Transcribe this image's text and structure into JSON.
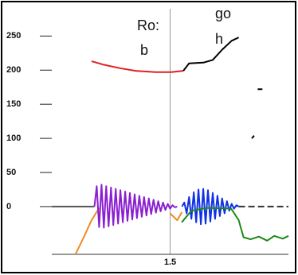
{
  "chart_data": {
    "type": "line",
    "annotations": [
      "Ro:",
      "b",
      "go",
      "h"
    ],
    "xlim": [
      1.0,
      2.0
    ],
    "xticks": [
      1.5
    ],
    "ylim": [
      -70,
      290
    ],
    "yticks": [
      250,
      200,
      150,
      100,
      50,
      0
    ],
    "series": [
      {
        "color": "#555555",
        "dashed": false,
        "x": [
          1.0,
          1.18
        ],
        "values": [
          0,
          0
        ]
      },
      {
        "color": "#333333",
        "dashed": true,
        "x": [
          1.79,
          2.0
        ],
        "values": [
          0,
          0
        ]
      },
      {
        "color": "#e02020",
        "dashed": false,
        "x": [
          1.168,
          1.219,
          1.286,
          1.354,
          1.438,
          1.505,
          1.556
        ],
        "values": [
          213,
          208,
          203,
          199,
          197,
          197,
          199
        ]
      },
      {
        "color": "#000000",
        "dashed": false,
        "x": [
          1.556,
          1.58,
          1.64,
          1.68,
          1.72,
          1.76,
          1.79,
          null,
          1.87,
          1.89,
          null,
          1.845,
          1.855
        ],
        "values": [
          199,
          210,
          211,
          215,
          230,
          243,
          248,
          null,
          172,
          172,
          null,
          100,
          104
        ]
      },
      {
        "color": "#f08a20",
        "dashed": false,
        "x": [
          1.1,
          1.135,
          1.168,
          1.2,
          null,
          1.5,
          1.53,
          1.55
        ],
        "values": [
          -70,
          -45,
          -20,
          -2,
          null,
          -10,
          -20,
          -8
        ]
      },
      {
        "color": "#8a1fd0",
        "dashed": false,
        "x": [
          1.18,
          1.19,
          1.2,
          1.21,
          1.22,
          1.23,
          1.24,
          1.25,
          1.26,
          1.27,
          1.28,
          1.29,
          1.3,
          1.31,
          1.32,
          1.33,
          1.34,
          1.35,
          1.36,
          1.37,
          1.38,
          1.39,
          1.4,
          1.41,
          1.42,
          1.43,
          1.44,
          1.45,
          1.46,
          1.47,
          1.48,
          1.49,
          1.5,
          1.51,
          1.52,
          1.53
        ],
        "values": [
          0,
          30,
          -30,
          32,
          -31,
          30,
          -29,
          28,
          -27,
          26,
          -25,
          24,
          -23,
          22,
          -21,
          20,
          -19,
          18,
          -17,
          16,
          -15,
          14,
          -13,
          12,
          -11,
          10,
          -9,
          8,
          -7,
          6,
          -5,
          4,
          -3,
          2,
          -1,
          0
        ]
      },
      {
        "color": "#1030e8",
        "dashed": false,
        "x": [
          1.55,
          1.56,
          1.57,
          1.58,
          1.59,
          1.6,
          1.61,
          1.62,
          1.63,
          1.64,
          1.65,
          1.66,
          1.67,
          1.68,
          1.69,
          1.7,
          1.71,
          1.72,
          1.73,
          1.74,
          1.75,
          1.76,
          1.77,
          1.78,
          1.79
        ],
        "values": [
          0,
          6,
          -10,
          14,
          -18,
          21,
          -23,
          25,
          -26,
          26,
          -25,
          24,
          -22,
          20,
          -18,
          16,
          -14,
          12,
          -10,
          8,
          -6,
          4,
          -3,
          2,
          0
        ]
      },
      {
        "color": "#1a8a1a",
        "dashed": false,
        "x": [
          1.549,
          1.59,
          1.657,
          1.758,
          1.79,
          1.81,
          1.84,
          1.875,
          1.91,
          1.94,
          1.976,
          2.0
        ],
        "values": [
          -23,
          -6,
          -2,
          -3,
          -20,
          -45,
          -48,
          -44,
          -50,
          -43,
          -47,
          -43
        ]
      }
    ]
  }
}
